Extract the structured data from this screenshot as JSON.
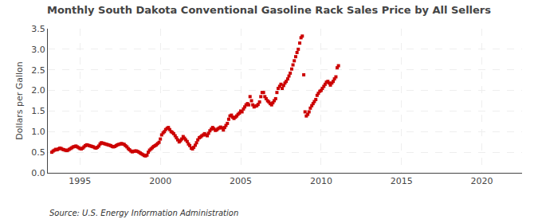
{
  "chart_data": {
    "type": "scatter",
    "title": "Monthly South Dakota Conventional Gasoline Rack Sales Price by All Sellers",
    "y_label": "Dollars per Gallon",
    "annotations": [
      "Source: U.S. Energy Information Administration"
    ],
    "color": "#CC0000",
    "marker": "square",
    "grid": true,
    "xlim": [
      1993.0,
      2022.5
    ],
    "ylim": [
      0.0,
      3.5
    ],
    "xticks": [
      1995,
      2000,
      2005,
      2010,
      2015,
      2020
    ],
    "yticks": [
      {
        "value": 0.0,
        "label": "0.0"
      },
      0.5,
      {
        "value": 1.0,
        "label": "1.0"
      },
      1.5,
      {
        "value": 2.0,
        "label": "2.0"
      },
      2.5,
      {
        "value": 3.0,
        "label": "3.0"
      },
      3.5
    ],
    "x": [
      1993.25,
      1993.33,
      1993.42,
      1993.5,
      1993.58,
      1993.67,
      1993.75,
      1993.83,
      1993.92,
      1994.0,
      1994.08,
      1994.17,
      1994.25,
      1994.33,
      1994.42,
      1994.5,
      1994.58,
      1994.67,
      1994.75,
      1994.83,
      1994.92,
      1995.0,
      1995.08,
      1995.17,
      1995.25,
      1995.33,
      1995.42,
      1995.5,
      1995.58,
      1995.67,
      1995.75,
      1995.83,
      1995.92,
      1996.0,
      1996.08,
      1996.17,
      1996.25,
      1996.33,
      1996.42,
      1996.5,
      1996.58,
      1996.67,
      1996.75,
      1996.83,
      1996.92,
      1997.0,
      1997.08,
      1997.17,
      1997.25,
      1997.33,
      1997.42,
      1997.5,
      1997.58,
      1997.67,
      1997.75,
      1997.83,
      1997.92,
      1998.0,
      1998.08,
      1998.17,
      1998.25,
      1998.33,
      1998.42,
      1998.5,
      1998.58,
      1998.67,
      1998.75,
      1998.83,
      1998.92,
      1999.0,
      1999.08,
      1999.17,
      1999.25,
      1999.33,
      1999.42,
      1999.5,
      1999.58,
      1999.67,
      1999.75,
      1999.83,
      1999.92,
      2000.0,
      2000.08,
      2000.17,
      2000.25,
      2000.33,
      2000.42,
      2000.5,
      2000.58,
      2000.67,
      2000.75,
      2000.83,
      2000.92,
      2001.0,
      2001.08,
      2001.17,
      2001.25,
      2001.33,
      2001.42,
      2001.5,
      2001.58,
      2001.67,
      2001.75,
      2001.83,
      2001.92,
      2002.0,
      2002.08,
      2002.17,
      2002.25,
      2002.33,
      2002.42,
      2002.5,
      2002.58,
      2002.67,
      2002.75,
      2002.83,
      2002.92,
      2003.0,
      2003.08,
      2003.17,
      2003.25,
      2003.33,
      2003.42,
      2003.5,
      2003.58,
      2003.67,
      2003.75,
      2003.83,
      2003.92,
      2004.0,
      2004.08,
      2004.17,
      2004.25,
      2004.33,
      2004.42,
      2004.5,
      2004.58,
      2004.67,
      2004.75,
      2004.83,
      2004.92,
      2005.0,
      2005.08,
      2005.17,
      2005.25,
      2005.33,
      2005.42,
      2005.5,
      2005.58,
      2005.67,
      2005.75,
      2005.83,
      2005.92,
      2006.0,
      2006.08,
      2006.17,
      2006.25,
      2006.33,
      2006.42,
      2006.5,
      2006.58,
      2006.67,
      2006.75,
      2006.83,
      2006.92,
      2007.0,
      2007.08,
      2007.17,
      2007.25,
      2007.33,
      2007.42,
      2007.5,
      2007.58,
      2007.67,
      2007.75,
      2007.83,
      2007.92,
      2008.0,
      2008.08,
      2008.17,
      2008.25,
      2008.33,
      2008.42,
      2008.5,
      2008.58,
      2008.67,
      2008.75,
      2008.83,
      2008.92,
      2009.0,
      2009.08,
      2009.17,
      2009.25,
      2009.33,
      2009.42,
      2009.5,
      2009.58,
      2009.67,
      2009.75,
      2009.83,
      2009.92,
      2010.0,
      2010.08,
      2010.17,
      2010.25,
      2010.33,
      2010.42,
      2010.5,
      2010.58,
      2010.67,
      2010.75,
      2010.83,
      2010.92,
      2011.0,
      2011.08
    ],
    "values": [
      0.5,
      0.53,
      0.55,
      0.57,
      0.56,
      0.58,
      0.6,
      0.59,
      0.57,
      0.56,
      0.55,
      0.54,
      0.55,
      0.57,
      0.59,
      0.61,
      0.63,
      0.64,
      0.65,
      0.63,
      0.61,
      0.59,
      0.58,
      0.6,
      0.63,
      0.66,
      0.68,
      0.67,
      0.66,
      0.65,
      0.64,
      0.63,
      0.61,
      0.6,
      0.62,
      0.65,
      0.7,
      0.73,
      0.72,
      0.71,
      0.7,
      0.69,
      0.68,
      0.67,
      0.66,
      0.64,
      0.63,
      0.64,
      0.66,
      0.68,
      0.69,
      0.7,
      0.71,
      0.7,
      0.69,
      0.66,
      0.63,
      0.59,
      0.56,
      0.53,
      0.51,
      0.52,
      0.53,
      0.53,
      0.52,
      0.5,
      0.48,
      0.46,
      0.44,
      0.42,
      0.41,
      0.43,
      0.5,
      0.55,
      0.58,
      0.61,
      0.64,
      0.66,
      0.68,
      0.71,
      0.74,
      0.82,
      0.92,
      0.97,
      1.0,
      1.05,
      1.08,
      1.1,
      1.05,
      1.0,
      0.98,
      0.95,
      0.9,
      0.85,
      0.8,
      0.75,
      0.78,
      0.82,
      0.88,
      0.84,
      0.8,
      0.76,
      0.7,
      0.66,
      0.6,
      0.58,
      0.62,
      0.67,
      0.73,
      0.8,
      0.85,
      0.87,
      0.9,
      0.92,
      0.95,
      0.92,
      0.9,
      0.96,
      1.02,
      1.06,
      1.1,
      1.07,
      1.03,
      1.04,
      1.07,
      1.09,
      1.11,
      1.09,
      1.04,
      1.1,
      1.15,
      1.2,
      1.3,
      1.38,
      1.4,
      1.35,
      1.32,
      1.35,
      1.38,
      1.42,
      1.45,
      1.5,
      1.48,
      1.55,
      1.6,
      1.65,
      1.68,
      1.65,
      1.85,
      1.75,
      1.65,
      1.6,
      1.62,
      1.63,
      1.66,
      1.72,
      1.85,
      1.95,
      1.95,
      1.85,
      1.8,
      1.75,
      1.72,
      1.68,
      1.65,
      1.7,
      1.75,
      1.8,
      1.95,
      2.05,
      2.1,
      2.15,
      2.05,
      2.12,
      2.18,
      2.22,
      2.28,
      2.35,
      2.42,
      2.52,
      2.62,
      2.72,
      2.82,
      2.92,
      3.0,
      3.15,
      3.28,
      3.32,
      2.38,
      1.48,
      1.38,
      1.42,
      1.48,
      1.57,
      1.63,
      1.68,
      1.73,
      1.78,
      1.88,
      1.93,
      1.98,
      2.0,
      2.05,
      2.1,
      2.15,
      2.2,
      2.22,
      2.18,
      2.13,
      2.18,
      2.22,
      2.28,
      2.33,
      2.55,
      2.6
    ]
  }
}
